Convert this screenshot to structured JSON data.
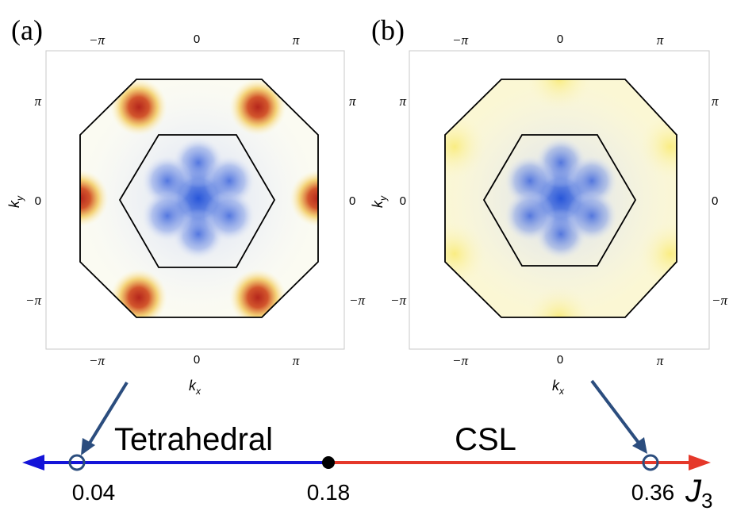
{
  "panels": [
    {
      "label": "(a)",
      "x_ticks": [
        "−π",
        "0",
        "π"
      ],
      "y_ticks": [
        "π",
        "0",
        "−π"
      ],
      "right_ticks": [
        "π",
        "0",
        "−π"
      ],
      "xlabel_main": "k",
      "xlabel_sub": "x",
      "ylabel_main": "k",
      "ylabel_sub": "y",
      "pattern": "tetrahedral"
    },
    {
      "label": "(b)",
      "x_ticks": [
        "−π",
        "0",
        "π"
      ],
      "y_ticks": [
        "π",
        "0",
        "−π"
      ],
      "right_ticks": [
        "π",
        "0",
        "−π"
      ],
      "xlabel_main": "k",
      "xlabel_sub": "x",
      "ylabel_main": "k",
      "ylabel_sub": "y",
      "pattern": "csl"
    }
  ],
  "phase_diagram": {
    "left_phase": "Tetrahedral",
    "right_phase": "CSL",
    "marker_a_value": "0.04",
    "transition_value": "0.18",
    "marker_b_value": "0.36",
    "axis_main": "J",
    "axis_sub": "3",
    "left_color": "#1414d8",
    "right_color": "#e5382a",
    "marker_color": "#2b4d7e"
  }
}
